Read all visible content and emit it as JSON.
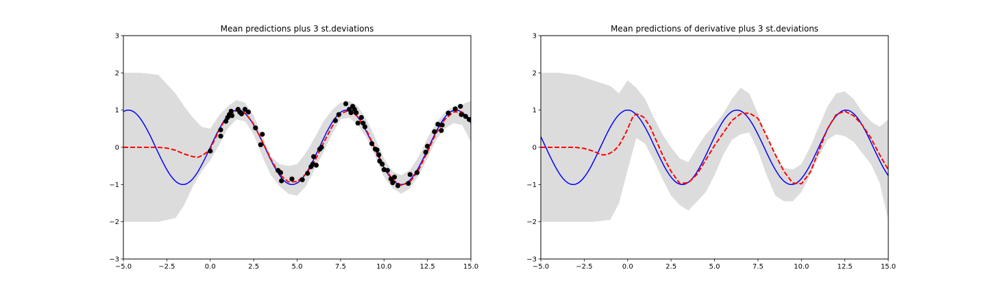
{
  "chart_data": [
    {
      "type": "line",
      "title": "Mean predictions plus 3 st.deviations",
      "xlabel": "",
      "ylabel": "",
      "xlim": [
        -5.0,
        15.0
      ],
      "ylim": [
        -3,
        3
      ],
      "x_ticks": [
        "−5.0",
        "−2.5",
        "0.0",
        "2.5",
        "5.0",
        "7.5",
        "10.0",
        "12.5",
        "15.0"
      ],
      "y_ticks": [
        "−3",
        "−2",
        "−1",
        "0",
        "1",
        "2",
        "3"
      ],
      "grid": false,
      "colors": {
        "band": "#dcdcdc",
        "true_function": "#0000ff",
        "mean": "#ff0000",
        "points": "#000000"
      },
      "series": [
        {
          "kind": "band",
          "x": [
            -5,
            -4,
            -3,
            -2,
            -1.5,
            -1,
            -0.5,
            0,
            0.5,
            1,
            1.5,
            2,
            2.5,
            3,
            3.5,
            4,
            4.5,
            5,
            5.5,
            6,
            6.5,
            7,
            7.5,
            8,
            8.5,
            9,
            9.5,
            10,
            10.5,
            11,
            11.5,
            12,
            12.5,
            13,
            13.5,
            14,
            14.5,
            15
          ],
          "upper": [
            2.0,
            2.0,
            1.95,
            1.45,
            1.1,
            0.8,
            0.55,
            0.5,
            0.85,
            1.1,
            1.27,
            1.2,
            0.85,
            0.3,
            -0.25,
            -0.45,
            -0.5,
            -0.45,
            -0.15,
            0.25,
            0.68,
            1.0,
            1.2,
            1.25,
            1.1,
            0.75,
            0.25,
            -0.3,
            -0.65,
            -0.75,
            -0.6,
            -0.25,
            0.25,
            0.65,
            0.95,
            1.1,
            1.15,
            1.25
          ],
          "lower": [
            -2.0,
            -2.0,
            -2.0,
            -1.9,
            -1.55,
            -1.05,
            -0.65,
            -0.35,
            0.05,
            0.5,
            0.75,
            0.7,
            0.35,
            -0.25,
            -0.75,
            -1.05,
            -1.25,
            -1.3,
            -1.05,
            -0.6,
            -0.15,
            0.35,
            0.75,
            0.8,
            0.6,
            0.25,
            -0.25,
            -0.8,
            -1.1,
            -1.25,
            -1.1,
            -0.75,
            -0.3,
            0.2,
            0.5,
            0.65,
            0.6,
            0.15
          ]
        },
        {
          "kind": "line",
          "function": "sin",
          "x_range": [
            -5,
            15
          ],
          "color": "#0000ff",
          "style": "solid"
        },
        {
          "kind": "line",
          "style": "dashed",
          "color": "#ff0000",
          "x": [
            -5,
            -4,
            -3,
            -2.5,
            -2,
            -1.5,
            -1,
            -0.7,
            -0.4,
            -0.1,
            0,
            0.3,
            0.6,
            1,
            1.5,
            2,
            2.5,
            3,
            3.5,
            4,
            4.5,
            5,
            5.5,
            6,
            6.5,
            7,
            7.5,
            8,
            8.5,
            9,
            9.5,
            10,
            10.5,
            11,
            11.5,
            12,
            12.5,
            13,
            13.5,
            14,
            14.5,
            15
          ],
          "y": [
            0,
            0,
            0,
            -0.02,
            -0.08,
            -0.18,
            -0.25,
            -0.27,
            -0.2,
            -0.1,
            -0.05,
            0.25,
            0.55,
            0.82,
            0.98,
            0.93,
            0.62,
            0.15,
            -0.33,
            -0.73,
            -0.93,
            -0.92,
            -0.72,
            -0.38,
            0.1,
            0.55,
            0.9,
            1.0,
            0.82,
            0.45,
            -0.05,
            -0.52,
            -0.87,
            -1.02,
            -0.93,
            -0.6,
            -0.12,
            0.38,
            0.75,
            0.95,
            0.95,
            0.72
          ]
        },
        {
          "kind": "scatter",
          "color": "#000000",
          "points": [
            [
              0,
              -0.1
            ],
            [
              0.6,
              0.3
            ],
            [
              0.6,
              0.47
            ],
            [
              0.9,
              0.7
            ],
            [
              1.0,
              0.8
            ],
            [
              1.1,
              0.88
            ],
            [
              1.2,
              0.97
            ],
            [
              1.25,
              0.85
            ],
            [
              1.6,
              1.02
            ],
            [
              1.7,
              0.95
            ],
            [
              1.8,
              0.9
            ],
            [
              2.0,
              1.02
            ],
            [
              2.2,
              0.95
            ],
            [
              2.6,
              0.52
            ],
            [
              2.9,
              0.07
            ],
            [
              3.0,
              0.35
            ],
            [
              3.9,
              -0.62
            ],
            [
              4.05,
              -0.68
            ],
            [
              4.1,
              -0.9
            ],
            [
              4.7,
              -0.85
            ],
            [
              5.3,
              -0.87
            ],
            [
              5.6,
              -0.7
            ],
            [
              5.8,
              -0.52
            ],
            [
              5.9,
              -0.45
            ],
            [
              5.95,
              -0.25
            ],
            [
              6.1,
              -0.48
            ],
            [
              6.3,
              -0.05
            ],
            [
              6.4,
              0.0
            ],
            [
              7.2,
              0.72
            ],
            [
              7.4,
              0.88
            ],
            [
              7.8,
              1.17
            ],
            [
              8.0,
              1.02
            ],
            [
              8.1,
              0.93
            ],
            [
              8.2,
              1.1
            ],
            [
              8.3,
              1.02
            ],
            [
              8.4,
              0.93
            ],
            [
              8.5,
              0.65
            ],
            [
              8.7,
              0.8
            ],
            [
              8.8,
              0.65
            ],
            [
              8.9,
              0.55
            ],
            [
              9.3,
              0.1
            ],
            [
              9.5,
              -0.05
            ],
            [
              9.6,
              -0.07
            ],
            [
              9.7,
              -0.2
            ],
            [
              9.75,
              -0.37
            ],
            [
              9.9,
              -0.45
            ],
            [
              10.0,
              -0.6
            ],
            [
              10.2,
              -0.62
            ],
            [
              10.4,
              -0.85
            ],
            [
              10.5,
              -0.95
            ],
            [
              10.6,
              -0.8
            ],
            [
              10.8,
              -1.03
            ],
            [
              11.4,
              -0.97
            ],
            [
              11.5,
              -0.73
            ],
            [
              11.9,
              -0.68
            ],
            [
              12.4,
              -0.13
            ],
            [
              12.5,
              0.03
            ],
            [
              12.9,
              0.42
            ],
            [
              13.1,
              0.62
            ],
            [
              13.3,
              0.45
            ],
            [
              13.35,
              0.6
            ],
            [
              13.7,
              0.92
            ],
            [
              14.1,
              1.03
            ],
            [
              14.4,
              1.1
            ],
            [
              14.45,
              0.88
            ],
            [
              14.7,
              0.83
            ],
            [
              14.9,
              0.75
            ]
          ]
        }
      ]
    },
    {
      "type": "line",
      "title": "Mean predictions of derivative plus 3 st.deviations",
      "xlabel": "",
      "ylabel": "",
      "xlim": [
        -5.0,
        15.0
      ],
      "ylim": [
        -3,
        3
      ],
      "x_ticks": [
        "−5.0",
        "−2.5",
        "0.0",
        "2.5",
        "5.0",
        "7.5",
        "10.0",
        "12.5",
        "15.0"
      ],
      "y_ticks": [
        "−3",
        "−2",
        "−1",
        "0",
        "1",
        "2",
        "3"
      ],
      "grid": false,
      "colors": {
        "band": "#dcdcdc",
        "true_function": "#0000ff",
        "mean": "#ff0000"
      },
      "series": [
        {
          "kind": "band",
          "x": [
            -5,
            -4,
            -3,
            -2,
            -1,
            -0.5,
            0,
            0.5,
            1,
            1.5,
            2,
            2.5,
            3,
            3.5,
            4,
            4.5,
            5,
            5.5,
            6,
            6.5,
            7,
            7.5,
            8,
            8.5,
            9,
            9.5,
            10,
            10.5,
            11,
            11.5,
            12,
            12.5,
            13,
            13.5,
            14,
            14.5,
            15
          ],
          "upper": [
            2.0,
            2.0,
            1.95,
            1.8,
            1.65,
            1.45,
            1.8,
            1.6,
            1.3,
            0.8,
            0.35,
            0.0,
            -0.3,
            -0.4,
            0.0,
            0.35,
            0.6,
            0.9,
            1.3,
            1.6,
            1.45,
            0.9,
            0.25,
            -0.2,
            -0.55,
            -0.6,
            -0.45,
            0.0,
            0.55,
            1.1,
            1.45,
            1.5,
            1.3,
            0.95,
            0.7,
            0.55,
            0.75
          ],
          "lower": [
            -2.0,
            -2.0,
            -2.0,
            -2.0,
            -1.95,
            -1.5,
            -0.6,
            0.25,
            0.1,
            -0.35,
            -0.85,
            -1.3,
            -1.55,
            -1.7,
            -1.45,
            -1.2,
            -0.75,
            -0.2,
            0.2,
            0.35,
            0.4,
            -0.1,
            -0.75,
            -1.3,
            -1.45,
            -1.45,
            -1.2,
            -0.75,
            -0.25,
            0.2,
            0.35,
            0.3,
            0.15,
            -0.15,
            -0.45,
            -0.95,
            -1.95
          ]
        },
        {
          "kind": "line",
          "function": "cos",
          "x_range": [
            -5,
            15
          ],
          "color": "#0000ff",
          "style": "solid"
        },
        {
          "kind": "line",
          "style": "dashed",
          "color": "#ff0000",
          "x": [
            -5,
            -4,
            -3,
            -2.5,
            -2,
            -1.5,
            -1.2,
            -0.8,
            -0.5,
            -0.2,
            0,
            0.3,
            0.5,
            0.9,
            1.3,
            2,
            2.5,
            3,
            3.5,
            4,
            5,
            6,
            6.5,
            7,
            7.5,
            8,
            8.5,
            9,
            9.5,
            10,
            10.5,
            11,
            11.5,
            12,
            12.5,
            13,
            13.5,
            14,
            14.5,
            15
          ],
          "y": [
            0,
            0,
            0,
            -0.03,
            -0.1,
            -0.2,
            -0.2,
            -0.1,
            0.05,
            0.3,
            0.5,
            0.82,
            0.9,
            0.82,
            0.55,
            -0.2,
            -0.65,
            -0.97,
            -0.95,
            -0.72,
            0.05,
            0.72,
            0.9,
            0.92,
            0.78,
            0.3,
            -0.2,
            -0.65,
            -0.96,
            -0.98,
            -0.68,
            -0.1,
            0.5,
            0.88,
            0.97,
            0.85,
            0.6,
            0.25,
            -0.2,
            -0.6
          ]
        }
      ]
    }
  ]
}
